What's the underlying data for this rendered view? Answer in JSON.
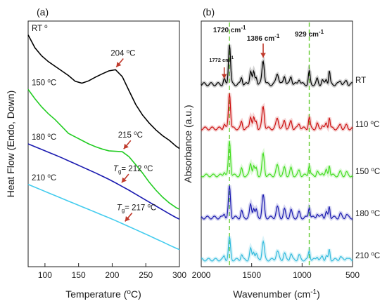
{
  "figure": {
    "panels": [
      "(a)",
      "(b)"
    ]
  },
  "chart_data": [
    {
      "type": "line",
      "panel": "(a)",
      "xlabel_main": "Temperature (",
      "xlabel_sup": "o",
      "xlabel_end": "C)",
      "ylabel": "Heat Flow (Endo, Down)",
      "xlim": [
        75,
        300
      ],
      "x_ticks": [
        "100",
        "150",
        "200",
        "250",
        "300"
      ],
      "x_tick_values": [
        100,
        150,
        200,
        250,
        300
      ],
      "y_ticks_shown": false,
      "x": [
        75,
        85,
        95,
        105,
        115,
        125,
        135,
        145,
        155,
        165,
        175,
        185,
        195,
        205,
        215,
        225,
        235,
        245,
        255,
        265,
        275,
        285,
        295,
        300
      ],
      "series": [
        {
          "name": "RT",
          "color": "#000000",
          "values": [
            10.0,
            9.45,
            9.1,
            8.85,
            8.65,
            8.45,
            8.25,
            8.0,
            7.92,
            8.02,
            8.18,
            8.32,
            8.45,
            8.5,
            8.2,
            7.6,
            7.0,
            6.55,
            6.2,
            5.9,
            5.65,
            5.45,
            5.2,
            5.1
          ]
        },
        {
          "name": "150 °C",
          "color": "#22cc22",
          "values": [
            7.65,
            7.25,
            6.9,
            6.6,
            6.35,
            6.05,
            5.75,
            5.6,
            5.45,
            5.3,
            5.18,
            5.08,
            5.0,
            4.98,
            4.96,
            4.75,
            4.4,
            4.05,
            3.65,
            3.3,
            3.0,
            2.75,
            2.55,
            2.48
          ]
        },
        {
          "name": "180 °C",
          "color": "#1a1ab0",
          "values": [
            5.3,
            5.18,
            5.06,
            4.94,
            4.82,
            4.7,
            4.57,
            4.44,
            4.31,
            4.18,
            4.05,
            3.91,
            3.77,
            3.62,
            3.46,
            3.3,
            3.13,
            2.96,
            2.79,
            2.62,
            2.45,
            2.28,
            2.12,
            2.05
          ]
        },
        {
          "name": "210 °C",
          "color": "#44ccee",
          "values": [
            3.55,
            3.43,
            3.31,
            3.19,
            3.07,
            2.95,
            2.83,
            2.71,
            2.59,
            2.47,
            2.35,
            2.23,
            2.11,
            1.99,
            1.86,
            1.73,
            1.6,
            1.47,
            1.34,
            1.2,
            1.07,
            0.93,
            0.8,
            0.74
          ]
        }
      ],
      "curve_labels": [
        "RT",
        "150 °C",
        "180 °C",
        "210 °C"
      ],
      "annotations": [
        {
          "main": "204 ",
          "sup": "o",
          "end": "C",
          "x": 204,
          "series": "RT"
        },
        {
          "main": "215 ",
          "sup": "o",
          "end": "C",
          "x": 215,
          "series": "150 °C"
        },
        {
          "pre": "T",
          "sub": "g",
          "main": "= 212 ",
          "sup": "o",
          "end": "C",
          "x": 212,
          "series": "180 °C"
        },
        {
          "pre": "T",
          "sub": "g",
          "main": "= 217 ",
          "sup": "o",
          "end": "C",
          "x": 217,
          "series": "210 °C"
        }
      ],
      "arrow_color": "#c0392b"
    },
    {
      "type": "line",
      "panel": "(b)",
      "xlabel_main": "Wavenumber (cm",
      "xlabel_sup": "-1",
      "xlabel_end": ")",
      "ylabel": "Absorbance (a.u.)",
      "xlim": [
        2000,
        500
      ],
      "x_reversed": true,
      "x_ticks": [
        "2000",
        "1500",
        "1000",
        "500"
      ],
      "x_tick_values": [
        2000,
        1500,
        1000,
        500
      ],
      "y_ticks_shown": false,
      "series_labels": [
        "RT",
        "110 °C",
        "150 °C",
        "180 °C",
        "210 °C"
      ],
      "series_colors": [
        "#000000",
        "#cc1111",
        "#44dd22",
        "#1a1ab0",
        "#33bbdd"
      ],
      "peaks_cm-1": [
        1772,
        1720,
        1600,
        1510,
        1480,
        1455,
        1386,
        1245,
        1175,
        1110,
        1030,
        929,
        850,
        800,
        760,
        730,
        620,
        560
      ],
      "peak_heights_RT": [
        0.12,
        1.0,
        0.18,
        0.35,
        0.28,
        0.2,
        0.6,
        0.28,
        0.22,
        0.2,
        0.14,
        0.3,
        0.12,
        0.1,
        0.14,
        0.32,
        0.1,
        0.08
      ],
      "reference_lines_cm-1": [
        1720,
        929
      ],
      "reference_line_color": "#66cc33",
      "peak_labels": [
        {
          "value": "1772 cm",
          "sup": "-1",
          "x": 1772,
          "small": true
        },
        {
          "value": "1720 cm",
          "sup": "-1",
          "x": 1720,
          "small": false
        },
        {
          "value": "1386 cm",
          "sup": "-1",
          "x": 1386,
          "small": false
        },
        {
          "value": "929 cm",
          "sup": "-1",
          "x": 929,
          "small": false
        }
      ],
      "arrow_color": "#c0392b"
    }
  ]
}
